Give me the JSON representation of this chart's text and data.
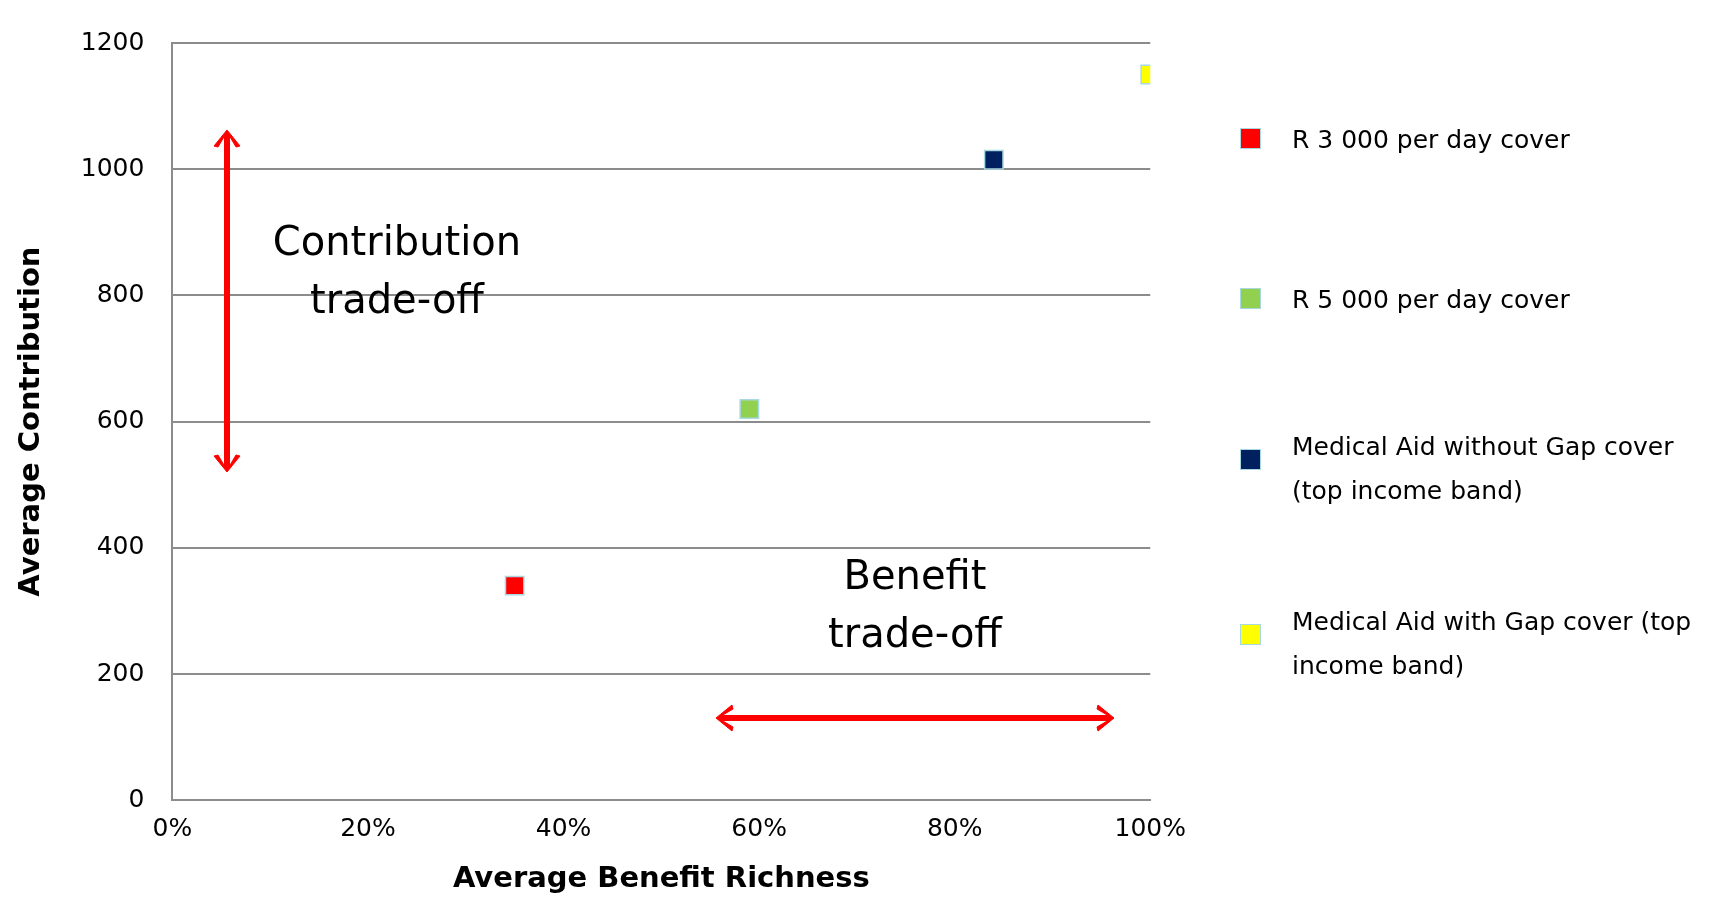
{
  "chart_data": {
    "type": "scatter",
    "xlabel": "Average Benefit Richness",
    "ylabel": "Average Contribution",
    "xlim": [
      0,
      100
    ],
    "xticks": [
      {
        "value": 0,
        "label": "0%"
      },
      {
        "value": 20,
        "label": "20%"
      },
      {
        "value": 40,
        "label": "40%"
      },
      {
        "value": 60,
        "label": "60%"
      },
      {
        "value": 80,
        "label": "80%"
      },
      {
        "value": 100,
        "label": "100%"
      }
    ],
    "ylim": [
      0,
      1200
    ],
    "yticks": [
      0,
      200,
      400,
      600,
      800,
      1000,
      1200
    ],
    "grid": "y",
    "legend": "right",
    "marker": "square",
    "series": [
      {
        "name": "R 3 000 per day cover",
        "color": "#ff0000",
        "x": [
          35
        ],
        "values": [
          340
        ]
      },
      {
        "name": "R 5 000 per day cover",
        "color": "#92d050",
        "x": [
          59
        ],
        "values": [
          620
        ]
      },
      {
        "name": "Medical Aid without Gap cover (top income band)",
        "color": "#002060",
        "x": [
          84
        ],
        "values": [
          1015
        ]
      },
      {
        "name": "Medical Aid with Gap cover (top income band)",
        "color": "#ffff00",
        "x": [
          100
        ],
        "values": [
          1150
        ]
      }
    ],
    "annotations": [
      "Contribution trade-off",
      "Benefit trade-off"
    ]
  }
}
